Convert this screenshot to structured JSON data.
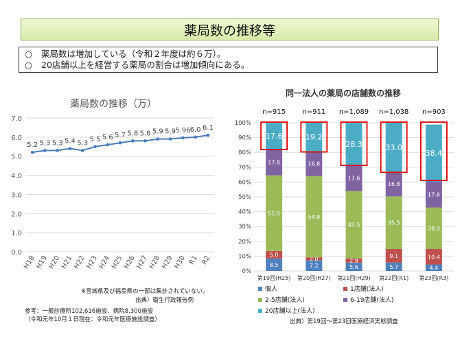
{
  "header": {
    "title": "薬局数の推移等"
  },
  "summary": {
    "mark": "○",
    "bullet1": "薬局数は増加している（令和２年度は約６万）。",
    "bullet2": "20店舗以上を経営する薬局の割合は増加傾向にある。"
  },
  "left_notes": {
    "note1": "※宮城県及び福島県の一部は集計されていない。",
    "source": "出典）衛生行政報告例",
    "ref1": "参考：一般診療所102,616施設、病院8,300施設",
    "ref2": "（令和元年10月１日現在：令和元年医療施設調査）"
  },
  "right_notes": {
    "source": "出典）第19回～第23回医療経済実態調査"
  },
  "colors": {
    "line": "#4a7bbf",
    "grid": "#d9d9d9",
    "kojin": "#4f81bd",
    "one": "#c0504d",
    "two_five": "#9bbb59",
    "six_nineteen": "#8064a2",
    "twenty_plus": "#4bacc6",
    "highlight": "#e00000"
  },
  "chart_data": [
    {
      "type": "line",
      "title": "薬局数の推移（万）",
      "categories": [
        "H18",
        "H19",
        "H20",
        "H21",
        "H22",
        "H23",
        "H24",
        "H25",
        "H26",
        "H27",
        "H28",
        "H29",
        "H30",
        "R1",
        "R2"
      ],
      "series": [
        {
          "values": [
            5.2,
            5.3,
            5.3,
            5.4,
            5.3,
            5.5,
            5.6,
            5.7,
            5.8,
            5.8,
            5.9,
            5.9,
            5.96,
            6.0,
            6.1
          ]
        }
      ],
      "labels": [
        "5.2",
        "5.3",
        "5.3",
        "5.4",
        "5.3",
        "5.5",
        "5.6",
        "5.7",
        "5.8",
        "5.8",
        "5.9",
        "5.9",
        "5.96",
        "6.0",
        "6.1"
      ],
      "ylim": [
        0,
        7
      ],
      "yticks": [
        "0.0",
        "1.0",
        "2.0",
        "3.0",
        "4.0",
        "5.0",
        "6.0",
        "7.0"
      ],
      "grid": true
    },
    {
      "type": "bar",
      "stacked": true,
      "title": "同一法人の薬局の店舗数の推移",
      "categories": [
        "第19回(H25)",
        "第20回(H27)",
        "第21回(H29)",
        "第22回(R1)",
        "第23回(R3)"
      ],
      "n_labels": [
        "n=915",
        "n=911",
        "n=1,089",
        "n=1,038",
        "n=903"
      ],
      "ylim": [
        0,
        100
      ],
      "yticks": [
        "0%",
        "10%",
        "20%",
        "30%",
        "40%",
        "50%",
        "60%",
        "70%",
        "80%",
        "90%",
        "100%"
      ],
      "series": [
        {
          "name": "個人",
          "values": [
            8.5,
            7.2,
            5.6,
            5.7,
            4.4
          ]
        },
        {
          "name": "1店舗(法人)",
          "values": [
            5.0,
            2.0,
            2.9,
            9.1,
            10.4
          ]
        },
        {
          "name": "2-5店舗(法人)",
          "values": [
            51.0,
            54.8,
            45.5,
            35.5,
            28.0
          ]
        },
        {
          "name": "6-19店舗(法人)",
          "values": [
            17.8,
            16.8,
            17.6,
            16.8,
            17.6
          ]
        },
        {
          "name": "20店舗以上(法人)",
          "values": [
            17.6,
            19.2,
            28.3,
            33.0,
            38.4
          ]
        }
      ],
      "legend_position": "bottom"
    }
  ]
}
